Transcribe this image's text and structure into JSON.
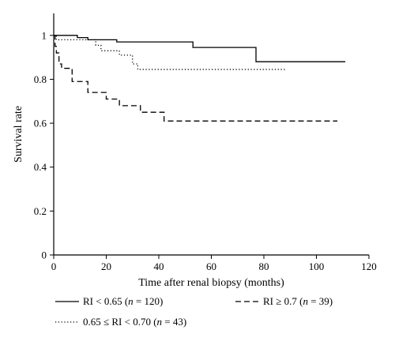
{
  "chart_data": {
    "type": "line",
    "step": true,
    "xlabel": "Time after renal biopsy (months)",
    "ylabel": "Survival rate",
    "xlim": [
      0,
      120
    ],
    "ylim": [
      0,
      1.1
    ],
    "xticks": [
      0,
      20,
      40,
      60,
      80,
      100,
      120
    ],
    "yticks": [
      0,
      0.2,
      0.4,
      0.6,
      0.8,
      1
    ],
    "x_tick_labels": [
      "0",
      "20",
      "40",
      "60",
      "80",
      "100",
      "120"
    ],
    "y_tick_labels": [
      "0",
      "0.2",
      "0.4",
      "0.6",
      "0.8",
      "1"
    ],
    "grid": false,
    "legend_position": "bottom",
    "series": [
      {
        "name": "RI < 0.65 (n = 120)",
        "line_style": "solid",
        "color": "#000000",
        "x": [
          0,
          9,
          13,
          24,
          53,
          77,
          111
        ],
        "y": [
          1.0,
          0.99,
          0.98,
          0.97,
          0.945,
          0.88,
          0.88
        ]
      },
      {
        "name": "0.65 ≤ RI < 0.70 (n = 43)",
        "line_style": "dotted",
        "color": "#000000",
        "x": [
          0,
          1,
          16,
          18,
          25,
          30,
          32,
          88
        ],
        "y": [
          1.0,
          0.98,
          0.955,
          0.93,
          0.91,
          0.87,
          0.845,
          0.845
        ]
      },
      {
        "name": "RI ≥ 0.7 (n = 39)",
        "line_style": "dashed",
        "color": "#000000",
        "x": [
          0,
          0.5,
          1,
          2,
          3,
          7,
          13,
          20,
          25,
          33,
          42,
          108
        ],
        "y": [
          1.0,
          0.95,
          0.92,
          0.87,
          0.85,
          0.79,
          0.74,
          0.71,
          0.68,
          0.65,
          0.61,
          0.61
        ]
      }
    ]
  }
}
